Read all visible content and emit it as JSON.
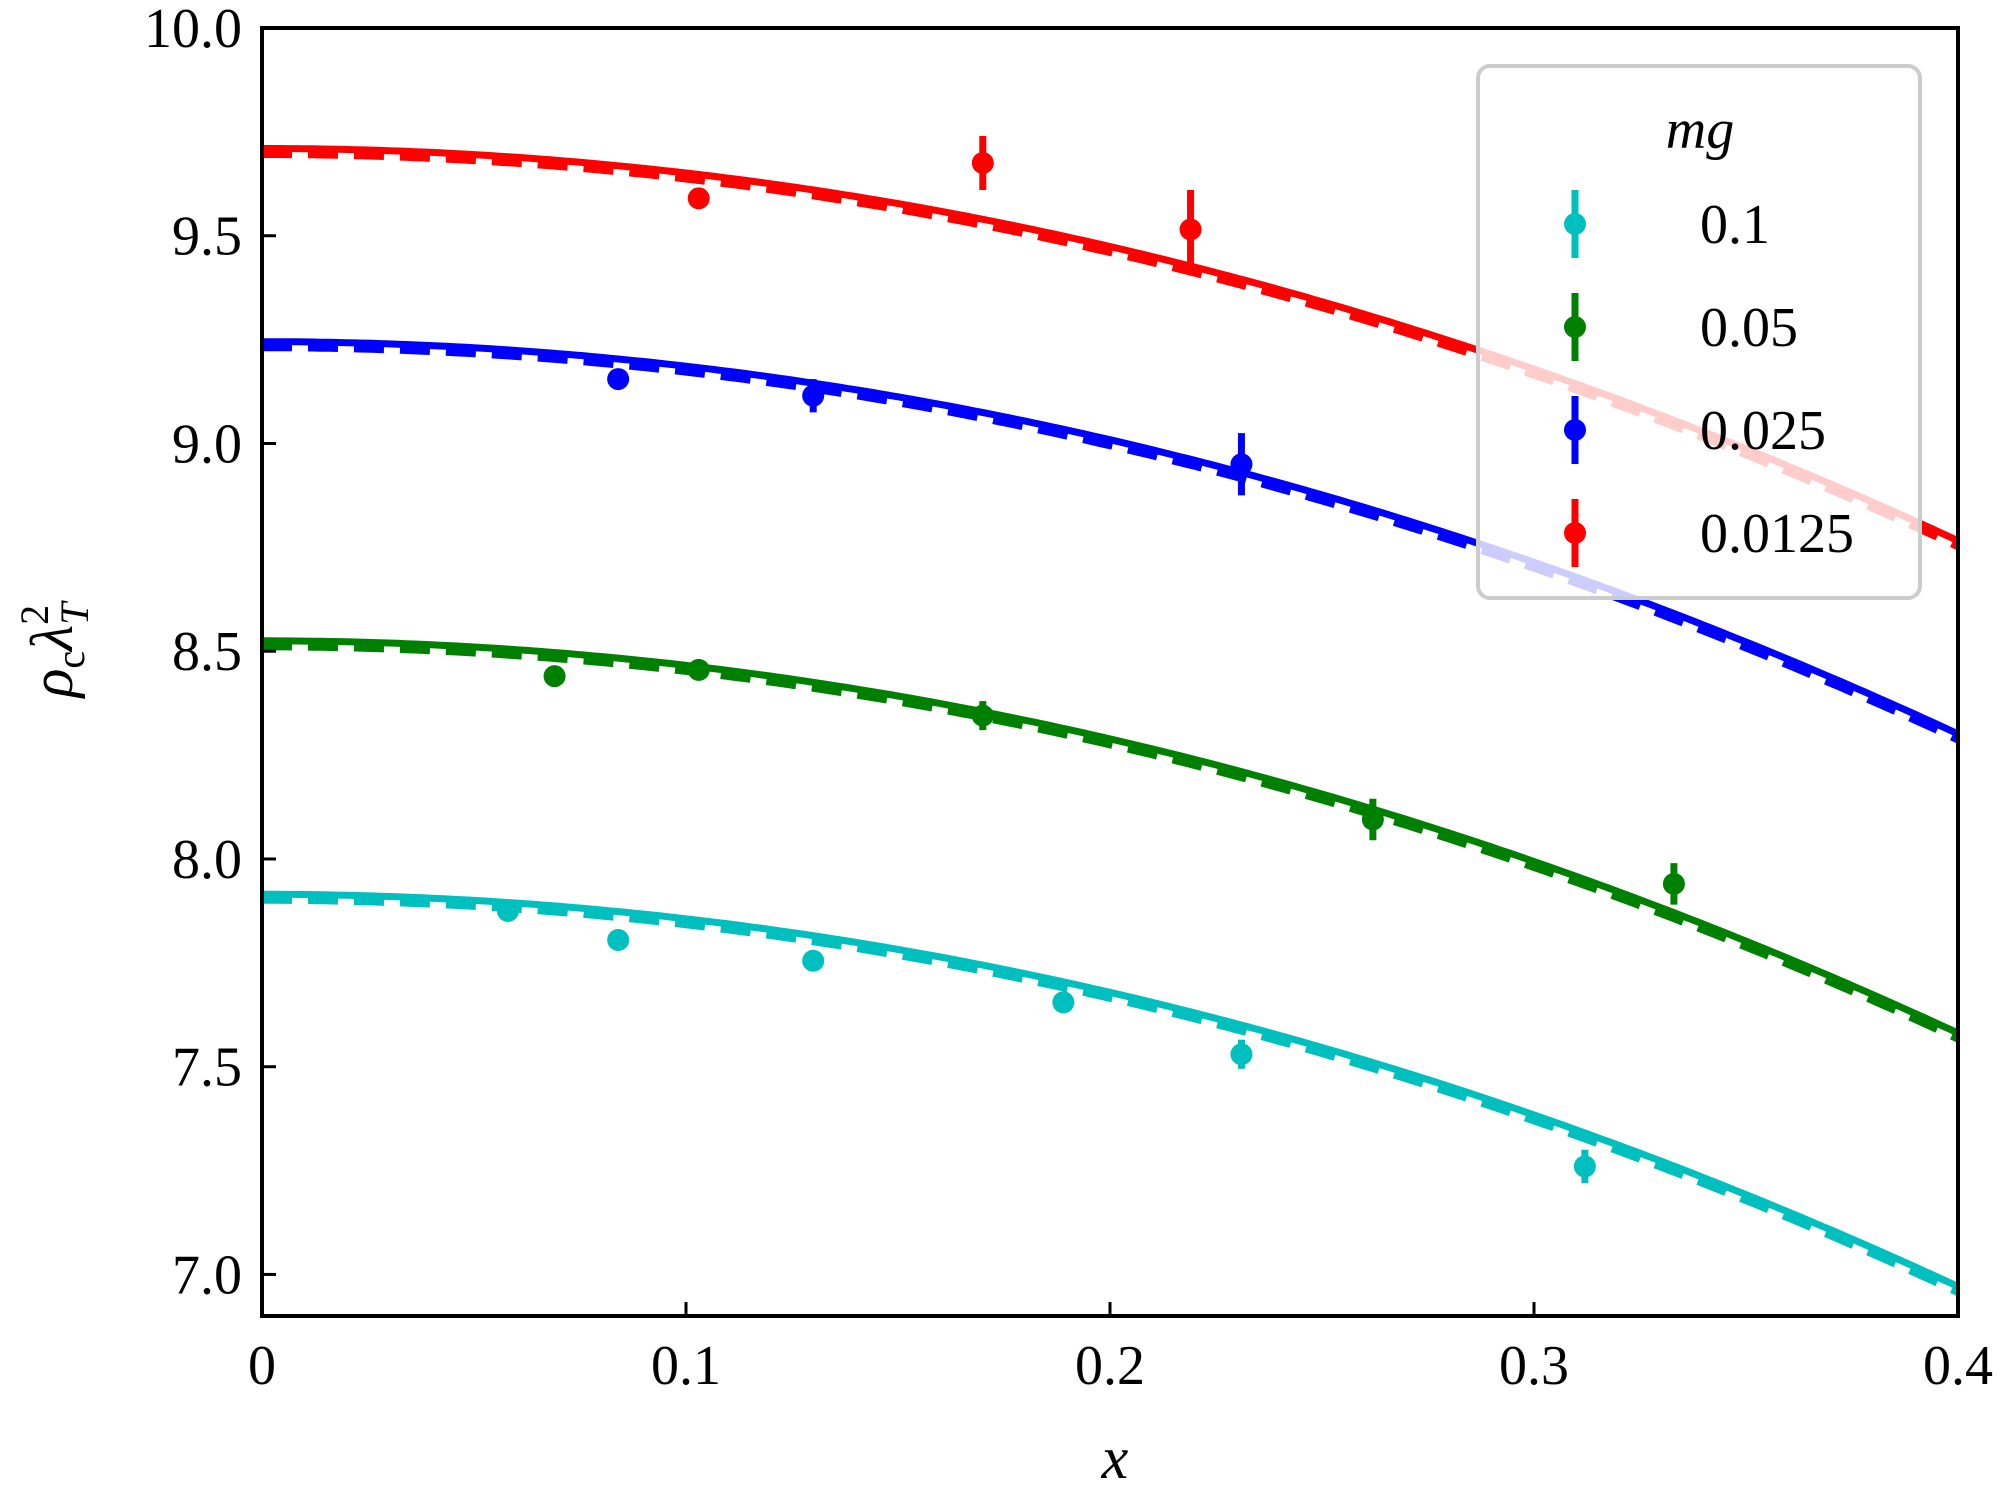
{
  "chart_data": {
    "type": "scatter",
    "title": "",
    "xlabel": "x",
    "ylabel": {
      "rho": "ρ",
      "sub_c": "c",
      "lambda": "λ",
      "sub_T": "T",
      "sup_2": "2"
    },
    "xlim": [
      0,
      0.4
    ],
    "ylim": [
      6.9,
      10.0
    ],
    "xticks": [
      0,
      0.1,
      0.2,
      0.3,
      0.4
    ],
    "xtick_labels": [
      "0",
      "0.1",
      "0.2",
      "0.3",
      "0.4"
    ],
    "yticks": [
      7.0,
      7.5,
      8.0,
      8.5,
      9.0,
      9.5,
      10.0
    ],
    "ytick_labels": [
      "7.0",
      "7.5",
      "8.0",
      "8.5",
      "9.0",
      "9.5",
      "10.0"
    ],
    "grid": false,
    "legend": {
      "title": "mg",
      "position": "top-right"
    },
    "series": [
      {
        "name": "0.1",
        "color": "#00bfbf",
        "points": [
          {
            "x": 0.058,
            "y": 7.875,
            "err": 0.02
          },
          {
            "x": 0.084,
            "y": 7.805,
            "err": 0.02
          },
          {
            "x": 0.13,
            "y": 7.755,
            "err": 0.02
          },
          {
            "x": 0.189,
            "y": 7.655,
            "err": 0.02
          },
          {
            "x": 0.231,
            "y": 7.53,
            "err": 0.035
          },
          {
            "x": 0.312,
            "y": 7.26,
            "err": 0.04
          }
        ],
        "fit": {
          "a": 7.915,
          "c": 5.9
        }
      },
      {
        "name": "0.05",
        "color": "#008000",
        "points": [
          {
            "x": 0.069,
            "y": 8.44,
            "err": 0.02
          },
          {
            "x": 0.103,
            "y": 8.455,
            "err": 0.02
          },
          {
            "x": 0.17,
            "y": 8.345,
            "err": 0.035
          },
          {
            "x": 0.262,
            "y": 8.095,
            "err": 0.05
          },
          {
            "x": 0.333,
            "y": 7.94,
            "err": 0.05
          }
        ],
        "fit": {
          "a": 8.525,
          "c": 5.9
        }
      },
      {
        "name": "0.025",
        "color": "#0000ff",
        "points": [
          {
            "x": 0.084,
            "y": 9.155,
            "err": 0.02
          },
          {
            "x": 0.13,
            "y": 9.115,
            "err": 0.04
          },
          {
            "x": 0.231,
            "y": 8.95,
            "err": 0.075
          }
        ],
        "fit": {
          "a": 9.245,
          "c": 5.9
        }
      },
      {
        "name": "0.0125",
        "color": "#ff0000",
        "points": [
          {
            "x": 0.103,
            "y": 9.59,
            "err": 0.02
          },
          {
            "x": 0.17,
            "y": 9.675,
            "err": 0.065
          },
          {
            "x": 0.219,
            "y": 9.515,
            "err": 0.095
          }
        ],
        "fit": {
          "a": 9.71,
          "c": 5.9
        }
      }
    ]
  }
}
